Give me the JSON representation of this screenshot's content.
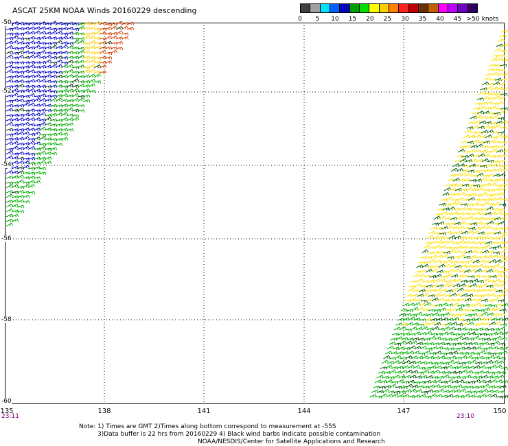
{
  "title": "ASCAT 25KM NOAA Winds 20160229 descending",
  "colorbar": {
    "colors": [
      "#404040",
      "#a0a0a0",
      "#00e0ff",
      "#0060ff",
      "#0000c0",
      "#00a000",
      "#00e000",
      "#ffff00",
      "#ffd000",
      "#ff8000",
      "#ff2020",
      "#c00000",
      "#6b3000",
      "#c06000",
      "#ff00ff",
      "#c000ff",
      "#7000c0",
      "#300060"
    ],
    "labels": [
      "0",
      "5",
      "10",
      "15",
      "20",
      "25",
      "30",
      "35",
      "40",
      "45",
      ">50 knots"
    ]
  },
  "map": {
    "lon_range": [
      135,
      150
    ],
    "lat_range": [
      -50,
      -60
    ],
    "lon_ticks": [
      "135",
      "138",
      "141",
      "144",
      "147",
      "150"
    ],
    "lat_ticks": [
      "-50",
      "-52",
      "-54",
      "-56",
      "-58",
      "-60"
    ],
    "grid": "dotted"
  },
  "times": {
    "left": "23:11",
    "right": "23:10"
  },
  "notes": {
    "line1": "Note: 1) Times are GMT 2)Times along bottom correspond to measurement at -55S",
    "line2": "3)Data buffer is 22 hrs from 20160229 4) Black wind barbs indicate possible contamination",
    "line3": "NOAA/NESDIS/Center for Satellite Applications and Research"
  }
}
